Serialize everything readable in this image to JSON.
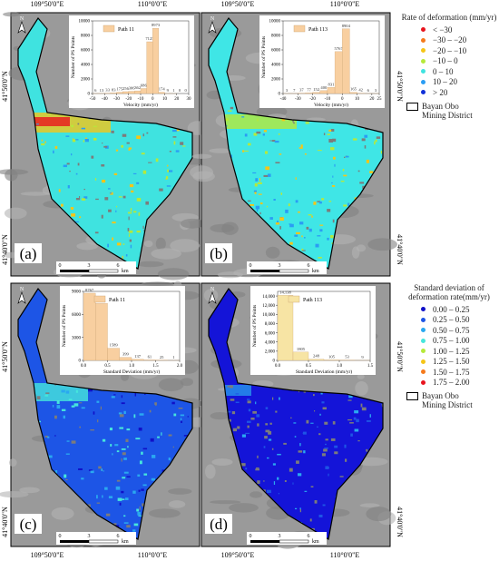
{
  "coordinates": {
    "lon_left": "109°50'0\"E",
    "lon_right": "110°0'0\"E",
    "lat_top": "41°50'0\"N",
    "lat_bottom": "41°40'0\"N"
  },
  "north": "N",
  "scale": {
    "ticks": [
      "0",
      "3",
      "6"
    ],
    "unit": "km"
  },
  "panels": [
    {
      "label": "(a)",
      "fill": "#3fe3e0",
      "histogram": {
        "legend": "Path 11",
        "y_label": "Number of PS Points",
        "x_label": "Velocity (mm/yr)",
        "bins": [
          -50,
          -45,
          -40,
          -35,
          -30,
          -25,
          -20,
          -15,
          -10,
          -5,
          0,
          5,
          10,
          15,
          20,
          25,
          30
        ],
        "counts": [
          6,
          13,
          33,
          83,
          175,
          256,
          306,
          362,
          686,
          7125,
          8973,
          174,
          9,
          1,
          0,
          0
        ],
        "xlim": [
          -50,
          30
        ],
        "xticks": [
          -50,
          -40,
          -30,
          -20,
          -10,
          0,
          10,
          20,
          30
        ],
        "ylim": [
          0,
          10000
        ],
        "yticks": [
          0,
          2000,
          4000,
          6000,
          8000,
          10000
        ]
      }
    },
    {
      "label": "(b)",
      "fill": "#3fe6e6",
      "histogram": {
        "legend": "Path 113",
        "y_label": "Number of PS Points",
        "x_label": "Velocity (mm/yr)",
        "bins": [
          -40,
          -35,
          -30,
          -25,
          -20,
          -15,
          -10,
          -5,
          0,
          5,
          10,
          15,
          20,
          25
        ],
        "counts": [
          3,
          7,
          37,
          77,
          152,
          400,
          831,
          5767,
          8904,
          165,
          42,
          6,
          3
        ],
        "xlim": [
          -40,
          25
        ],
        "xticks": [
          -40,
          -30,
          -20,
          -10,
          0,
          10,
          20,
          25
        ],
        "ylim": [
          0,
          10000
        ],
        "yticks": [
          0,
          2000,
          4000,
          6000,
          8000,
          10000
        ]
      }
    },
    {
      "label": "(c)",
      "fill": "#1d55e6",
      "histogram": {
        "legend": "Path 11",
        "y_label": "Number of PS Points",
        "x_label": "Standard Deviation (mm/yr)",
        "bins": [
          0,
          0.25,
          0.5,
          0.75,
          1,
          1.25,
          1.5,
          1.75,
          2
        ],
        "counts": [
          8767,
          7422,
          1589,
          399,
          137,
          61,
          25,
          1
        ],
        "xlim": [
          0,
          2
        ],
        "xticks": [
          {
            "value": 0,
            "label": "0.0"
          },
          {
            "value": 0.5,
            "label": "0.5"
          },
          {
            "value": 1,
            "label": "1.0"
          },
          {
            "value": 1.5,
            "label": "1.5"
          },
          {
            "value": 2,
            "label": "2.0"
          }
        ],
        "ylim": [
          0,
          9000
        ],
        "yticks": [
          0,
          3000,
          6000,
          9000
        ]
      }
    },
    {
      "label": "(d)",
      "fill": "#1414d8",
      "histogram": {
        "legend": "Path 113",
        "y_label": "Number of PS Points",
        "x_label": "Standard Deviation (mm/yr)",
        "bins": [
          0,
          0.25,
          0.5,
          0.75,
          1,
          1.25,
          1.5
        ],
        "counts": [
          14138,
          1805,
          248,
          105,
          53,
          9
        ],
        "value_labels": [
          "14,138",
          "1805",
          "248",
          "105",
          "53",
          "9"
        ],
        "xlim": [
          0,
          1.5
        ],
        "xticks": [
          {
            "value": 0,
            "label": "0.0"
          },
          {
            "value": 0.5,
            "label": "0.5"
          },
          {
            "value": 1,
            "label": "1.0"
          },
          {
            "value": 1.5,
            "label": "1.5"
          }
        ],
        "ylim": [
          0,
          15000
        ],
        "yticks": [
          0,
          {
            "value": 2000,
            "label": "2,000"
          },
          {
            "value": 4000,
            "label": "4,000"
          },
          {
            "value": 6000,
            "label": "6,000"
          },
          {
            "value": 8000,
            "label": "8,000"
          },
          {
            "value": 10000,
            "label": "10,000"
          },
          {
            "value": 12000,
            "label": "12,000"
          },
          {
            "value": 14000,
            "label": "14,000"
          }
        ]
      }
    }
  ],
  "legends": [
    {
      "title": "Rate of deformation (mm/yr)",
      "items": [
        {
          "label": "< −30",
          "color": "#e8141e"
        },
        {
          "label": "−30 – −20",
          "color": "#f57a1c"
        },
        {
          "label": "−20 – −10",
          "color": "#f5c518"
        },
        {
          "label": "−10 – 0",
          "color": "#b6e93a"
        },
        {
          "label": "0 – 10",
          "color": "#3fe3e0"
        },
        {
          "label": "10 – 20",
          "color": "#2a9df4"
        },
        {
          "label": "> 20",
          "color": "#1030d8"
        }
      ],
      "boundary": "Bayan Obo Mining District"
    },
    {
      "title": "Standard deviation of deformation rate(mm/yr)",
      "items": [
        {
          "label": "0.00 – 0.25",
          "color": "#1010c8"
        },
        {
          "label": "0.25 – 0.50",
          "color": "#1e55e6"
        },
        {
          "label": "0.50 – 0.75",
          "color": "#2aa8f0"
        },
        {
          "label": "0.75 – 1.00",
          "color": "#46e6dc"
        },
        {
          "label": "1.00 – 1.25",
          "color": "#b6e93a"
        },
        {
          "label": "1.25 – 1.50",
          "color": "#f5c518"
        },
        {
          "label": "1.50 – 1.75",
          "color": "#f57a1c"
        },
        {
          "label": "1.75 – 2.00",
          "color": "#e8141e"
        }
      ],
      "boundary": "Bayan Obo Mining District"
    }
  ]
}
